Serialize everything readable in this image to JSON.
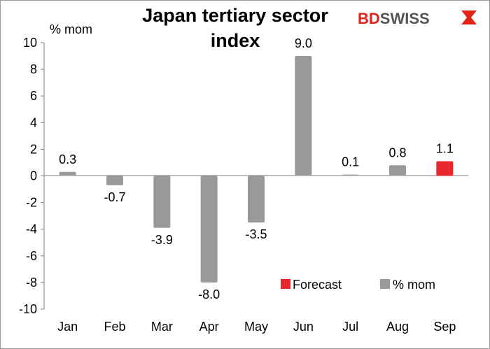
{
  "brand": {
    "logo_bd": "BD",
    "logo_swiss": "SWISS",
    "logo_color": "#e2231a"
  },
  "chart_data": {
    "type": "bar",
    "title_line1": "Japan tertiary sector",
    "title_line2": "index",
    "ylabel": "% mom",
    "ylim": [
      -10,
      10
    ],
    "yticks": [
      10,
      8,
      6,
      4,
      2,
      0,
      -2,
      -4,
      -6,
      -8,
      -10
    ],
    "grid": false,
    "legend_position": "bottom-right",
    "categories": [
      "Jan",
      "Feb",
      "Mar",
      "Apr",
      "May",
      "Jun",
      "Jul",
      "Aug",
      "Sep"
    ],
    "values": [
      0.3,
      -0.7,
      -3.9,
      -8.0,
      -3.5,
      9.0,
      0.1,
      0.8,
      1.1
    ],
    "data_labels": [
      "0.3",
      "-0.7",
      "-3.9",
      "-8.0",
      "-3.5",
      "9.0",
      "0.1",
      "0.8",
      "1.1"
    ],
    "series": [
      {
        "name": "Forecast",
        "color": "#e8262b",
        "indices": [
          8
        ]
      },
      {
        "name": "% mom",
        "color": "#999999",
        "indices": [
          0,
          1,
          2,
          3,
          4,
          5,
          6,
          7
        ]
      }
    ]
  }
}
